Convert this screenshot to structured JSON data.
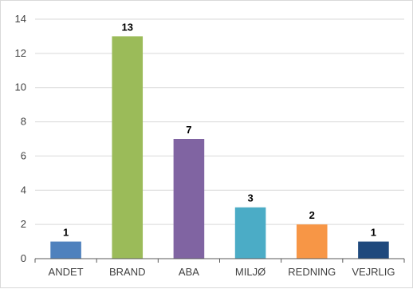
{
  "chart_data": {
    "type": "bar",
    "title": "",
    "xlabel": "",
    "ylabel": "",
    "categories": [
      "ANDET",
      "BRAND",
      "ABA",
      "MILJØ",
      "REDNING",
      "VEJRLIG"
    ],
    "values": [
      1,
      13,
      7,
      3,
      2,
      1
    ],
    "colors": [
      "#4f81bd",
      "#9bbb59",
      "#8064a2",
      "#4bacc6",
      "#f79646",
      "#1f497d"
    ],
    "ylim": [
      0,
      14
    ],
    "yticks": [
      0,
      2,
      4,
      6,
      8,
      10,
      12,
      14
    ],
    "grid": true,
    "legend": "none",
    "data_labels": true
  }
}
